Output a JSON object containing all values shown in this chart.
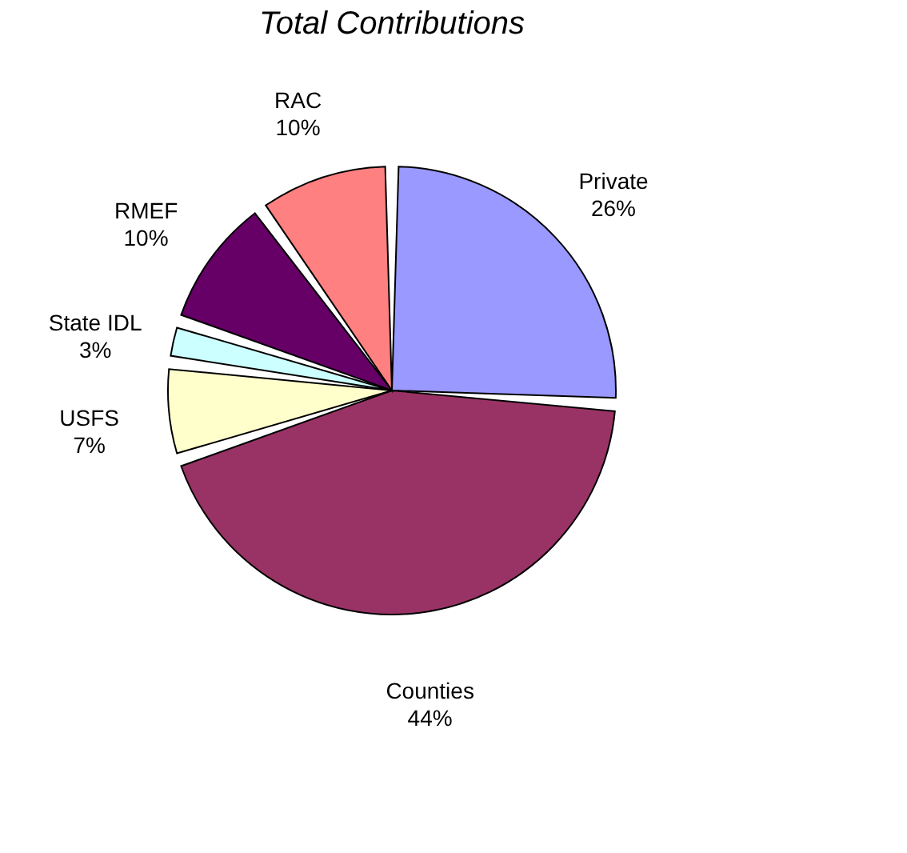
{
  "chart_data": {
    "type": "pie",
    "title": "Total Contributions",
    "categories": [
      "Private",
      "Counties",
      "USFS",
      "State IDL",
      "RMEF",
      "RAC"
    ],
    "values": [
      26,
      44,
      7,
      3,
      10,
      10
    ],
    "colors": [
      "#9999ff",
      "#993366",
      "#ffffcc",
      "#ccffff",
      "#660066",
      "#ff8080"
    ],
    "value_labels": [
      "26%",
      "44%",
      "7%",
      "3%",
      "10%",
      "10%"
    ],
    "legend": false
  }
}
